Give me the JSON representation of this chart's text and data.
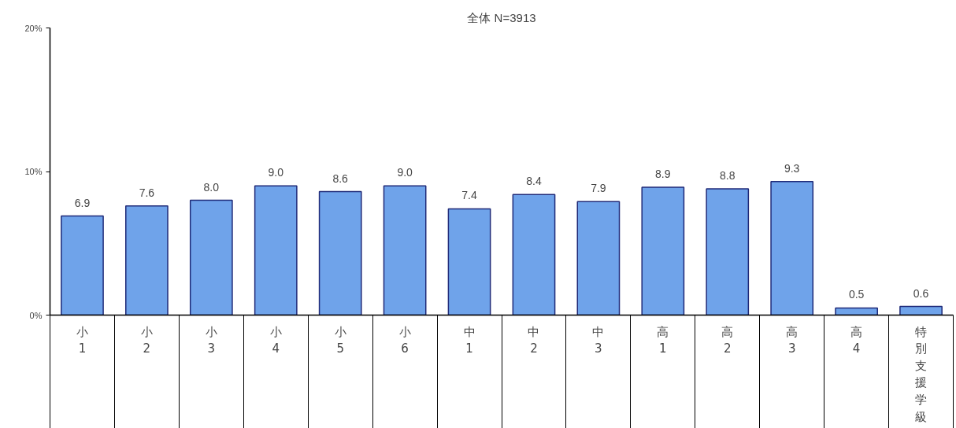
{
  "chart_data": {
    "type": "bar",
    "title": "全体 N=3913",
    "categories": [
      "小1",
      "小2",
      "小3",
      "小4",
      "小5",
      "小6",
      "中1",
      "中2",
      "中3",
      "高1",
      "高2",
      "高3",
      "高4",
      "特別支援学級"
    ],
    "values": [
      6.9,
      7.6,
      8.0,
      9.0,
      8.6,
      9.0,
      7.4,
      8.4,
      7.9,
      8.9,
      8.8,
      9.3,
      0.5,
      0.6
    ],
    "color": "#6fa3ea",
    "ylim": [
      0,
      20
    ],
    "yticks": [
      {
        "value": 0,
        "label": "0%"
      },
      {
        "value": 10,
        "label": "10%"
      },
      {
        "value": 20,
        "label": "20%"
      }
    ],
    "value_labels": [
      "6.9",
      "7.6",
      "8.0",
      "9.0",
      "8.6",
      "9.0",
      "7.4",
      "8.4",
      "7.9",
      "8.9",
      "8.8",
      "9.3",
      "0.5",
      "0.6"
    ],
    "grid": false
  }
}
